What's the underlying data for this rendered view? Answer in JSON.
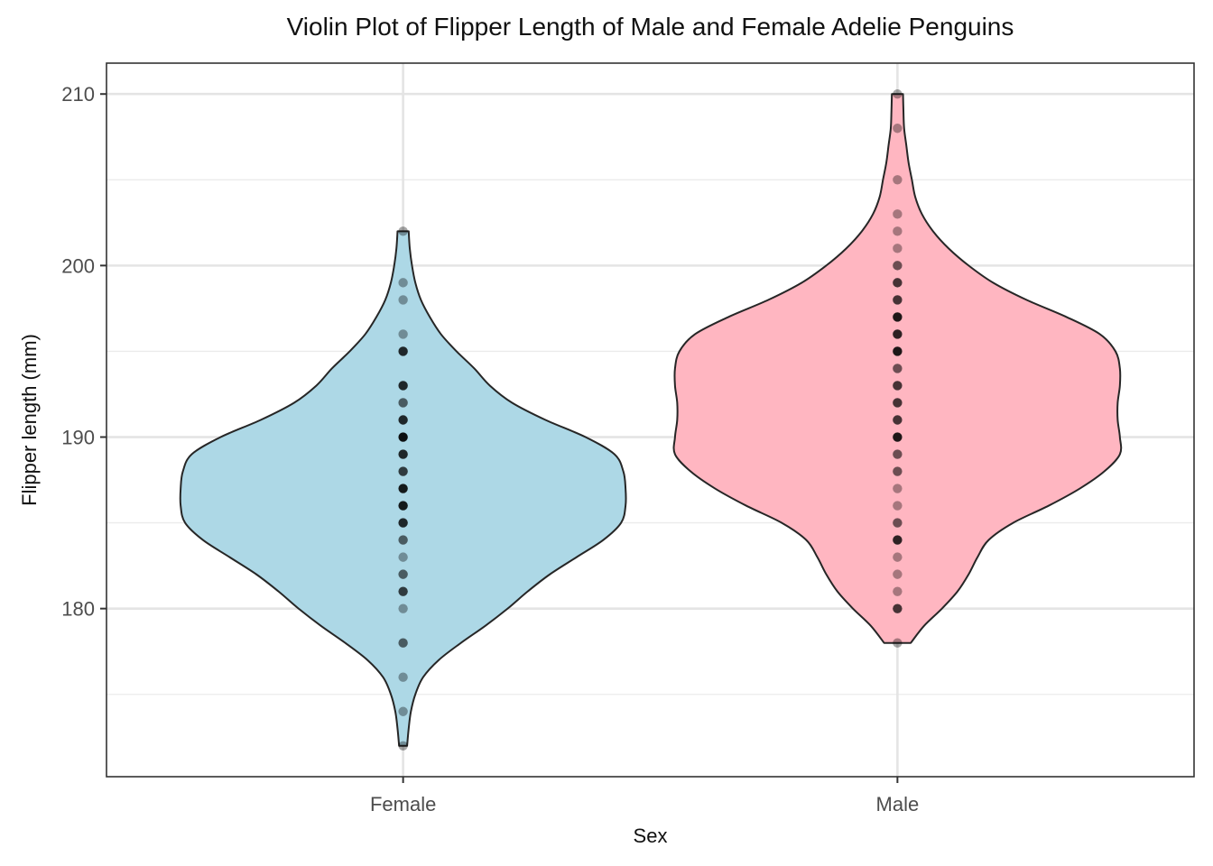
{
  "chart_data": {
    "type": "violin",
    "title": "Violin Plot of Flipper Length of Male and Female Adelie Penguins",
    "xlabel": "Sex",
    "ylabel": "Flipper length (mm)",
    "categories": [
      "Female",
      "Male"
    ],
    "ylim": [
      170.2,
      211.8
    ],
    "yticks": [
      180,
      190,
      200,
      210
    ],
    "grid": true,
    "colors": {
      "Female": "#add8e6",
      "Male": "#ffb6c1",
      "outline": "#262626",
      "points": "#000000"
    },
    "violins": [
      {
        "category": "Female",
        "min": 172,
        "max": 202,
        "density": [
          [
            172,
            0.018
          ],
          [
            173,
            0.025
          ],
          [
            174,
            0.035
          ],
          [
            175,
            0.055
          ],
          [
            176,
            0.09
          ],
          [
            177,
            0.16
          ],
          [
            178,
            0.26
          ],
          [
            179,
            0.37
          ],
          [
            180,
            0.47
          ],
          [
            181,
            0.56
          ],
          [
            182,
            0.66
          ],
          [
            183,
            0.78
          ],
          [
            184,
            0.9
          ],
          [
            185,
            0.98
          ],
          [
            186,
            1.0
          ],
          [
            187,
            1.0
          ],
          [
            188,
            0.99
          ],
          [
            189,
            0.95
          ],
          [
            190,
            0.82
          ],
          [
            191,
            0.64
          ],
          [
            192,
            0.49
          ],
          [
            193,
            0.39
          ],
          [
            194,
            0.32
          ],
          [
            195,
            0.24
          ],
          [
            196,
            0.17
          ],
          [
            197,
            0.12
          ],
          [
            198,
            0.08
          ],
          [
            199,
            0.055
          ],
          [
            200,
            0.04
          ],
          [
            201,
            0.03
          ],
          [
            202,
            0.025
          ]
        ],
        "points": [
          {
            "y": 172,
            "n": 1
          },
          {
            "y": 174,
            "n": 1
          },
          {
            "y": 176,
            "n": 1
          },
          {
            "y": 178,
            "n": 2
          },
          {
            "y": 180,
            "n": 1
          },
          {
            "y": 181,
            "n": 3
          },
          {
            "y": 182,
            "n": 2
          },
          {
            "y": 183,
            "n": 1
          },
          {
            "y": 184,
            "n": 2
          },
          {
            "y": 185,
            "n": 4
          },
          {
            "y": 186,
            "n": 5
          },
          {
            "y": 187,
            "n": 5
          },
          {
            "y": 188,
            "n": 3
          },
          {
            "y": 189,
            "n": 4
          },
          {
            "y": 190,
            "n": 6
          },
          {
            "y": 191,
            "n": 4
          },
          {
            "y": 192,
            "n": 2
          },
          {
            "y": 193,
            "n": 4
          },
          {
            "y": 195,
            "n": 4
          },
          {
            "y": 196,
            "n": 1
          },
          {
            "y": 198,
            "n": 1
          },
          {
            "y": 199,
            "n": 1
          },
          {
            "y": 202,
            "n": 1
          }
        ]
      },
      {
        "category": "Male",
        "min": 178,
        "max": 210,
        "density": [
          [
            178,
            0.06
          ],
          [
            179,
            0.12
          ],
          [
            180,
            0.2
          ],
          [
            181,
            0.27
          ],
          [
            182,
            0.32
          ],
          [
            183,
            0.36
          ],
          [
            184,
            0.41
          ],
          [
            185,
            0.52
          ],
          [
            186,
            0.68
          ],
          [
            187,
            0.82
          ],
          [
            188,
            0.93
          ],
          [
            189,
            1.0
          ],
          [
            190,
            1.0
          ],
          [
            191,
            0.99
          ],
          [
            192,
            0.99
          ],
          [
            193,
            1.0
          ],
          [
            194,
            1.0
          ],
          [
            195,
            0.98
          ],
          [
            196,
            0.91
          ],
          [
            197,
            0.76
          ],
          [
            198,
            0.58
          ],
          [
            199,
            0.43
          ],
          [
            200,
            0.32
          ],
          [
            201,
            0.23
          ],
          [
            202,
            0.16
          ],
          [
            203,
            0.11
          ],
          [
            204,
            0.08
          ],
          [
            205,
            0.065
          ],
          [
            206,
            0.05
          ],
          [
            207,
            0.04
          ],
          [
            208,
            0.03
          ],
          [
            209,
            0.027
          ],
          [
            210,
            0.025
          ]
        ],
        "points": [
          {
            "y": 178,
            "n": 1
          },
          {
            "y": 180,
            "n": 3
          },
          {
            "y": 181,
            "n": 1
          },
          {
            "y": 182,
            "n": 1
          },
          {
            "y": 183,
            "n": 1
          },
          {
            "y": 184,
            "n": 4
          },
          {
            "y": 185,
            "n": 2
          },
          {
            "y": 186,
            "n": 1
          },
          {
            "y": 187,
            "n": 1
          },
          {
            "y": 188,
            "n": 2
          },
          {
            "y": 189,
            "n": 2
          },
          {
            "y": 190,
            "n": 5
          },
          {
            "y": 191,
            "n": 3
          },
          {
            "y": 192,
            "n": 3
          },
          {
            "y": 193,
            "n": 3
          },
          {
            "y": 194,
            "n": 2
          },
          {
            "y": 195,
            "n": 5
          },
          {
            "y": 196,
            "n": 4
          },
          {
            "y": 197,
            "n": 5
          },
          {
            "y": 198,
            "n": 3
          },
          {
            "y": 199,
            "n": 3
          },
          {
            "y": 200,
            "n": 2
          },
          {
            "y": 201,
            "n": 1
          },
          {
            "y": 202,
            "n": 1
          },
          {
            "y": 203,
            "n": 1
          },
          {
            "y": 205,
            "n": 1
          },
          {
            "y": 208,
            "n": 1
          },
          {
            "y": 210,
            "n": 1
          }
        ]
      }
    ]
  }
}
